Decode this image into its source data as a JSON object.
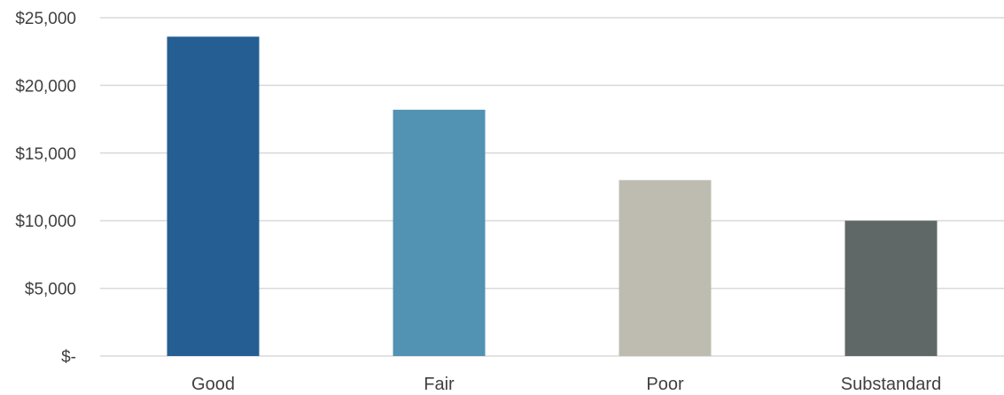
{
  "chart_data": {
    "type": "bar",
    "title": "",
    "xlabel": "",
    "ylabel": "",
    "categories": [
      "Good",
      "Fair",
      "Poor",
      "Substandard"
    ],
    "values": [
      23600,
      18200,
      13000,
      10000
    ],
    "bar_colors": [
      "#245e92",
      "#5292b2",
      "#bebcb0",
      "#5f6866"
    ],
    "ylim": [
      0,
      25000
    ],
    "y_ticks": [
      0,
      5000,
      10000,
      15000,
      20000,
      25000
    ],
    "y_tick_labels": [
      "$-",
      "$5,000",
      "$10,000",
      "$15,000",
      "$20,000",
      "$25,000"
    ],
    "grid": true,
    "legend": "none",
    "gridline_color": "#d9d9d9",
    "text_color": "#404040"
  }
}
